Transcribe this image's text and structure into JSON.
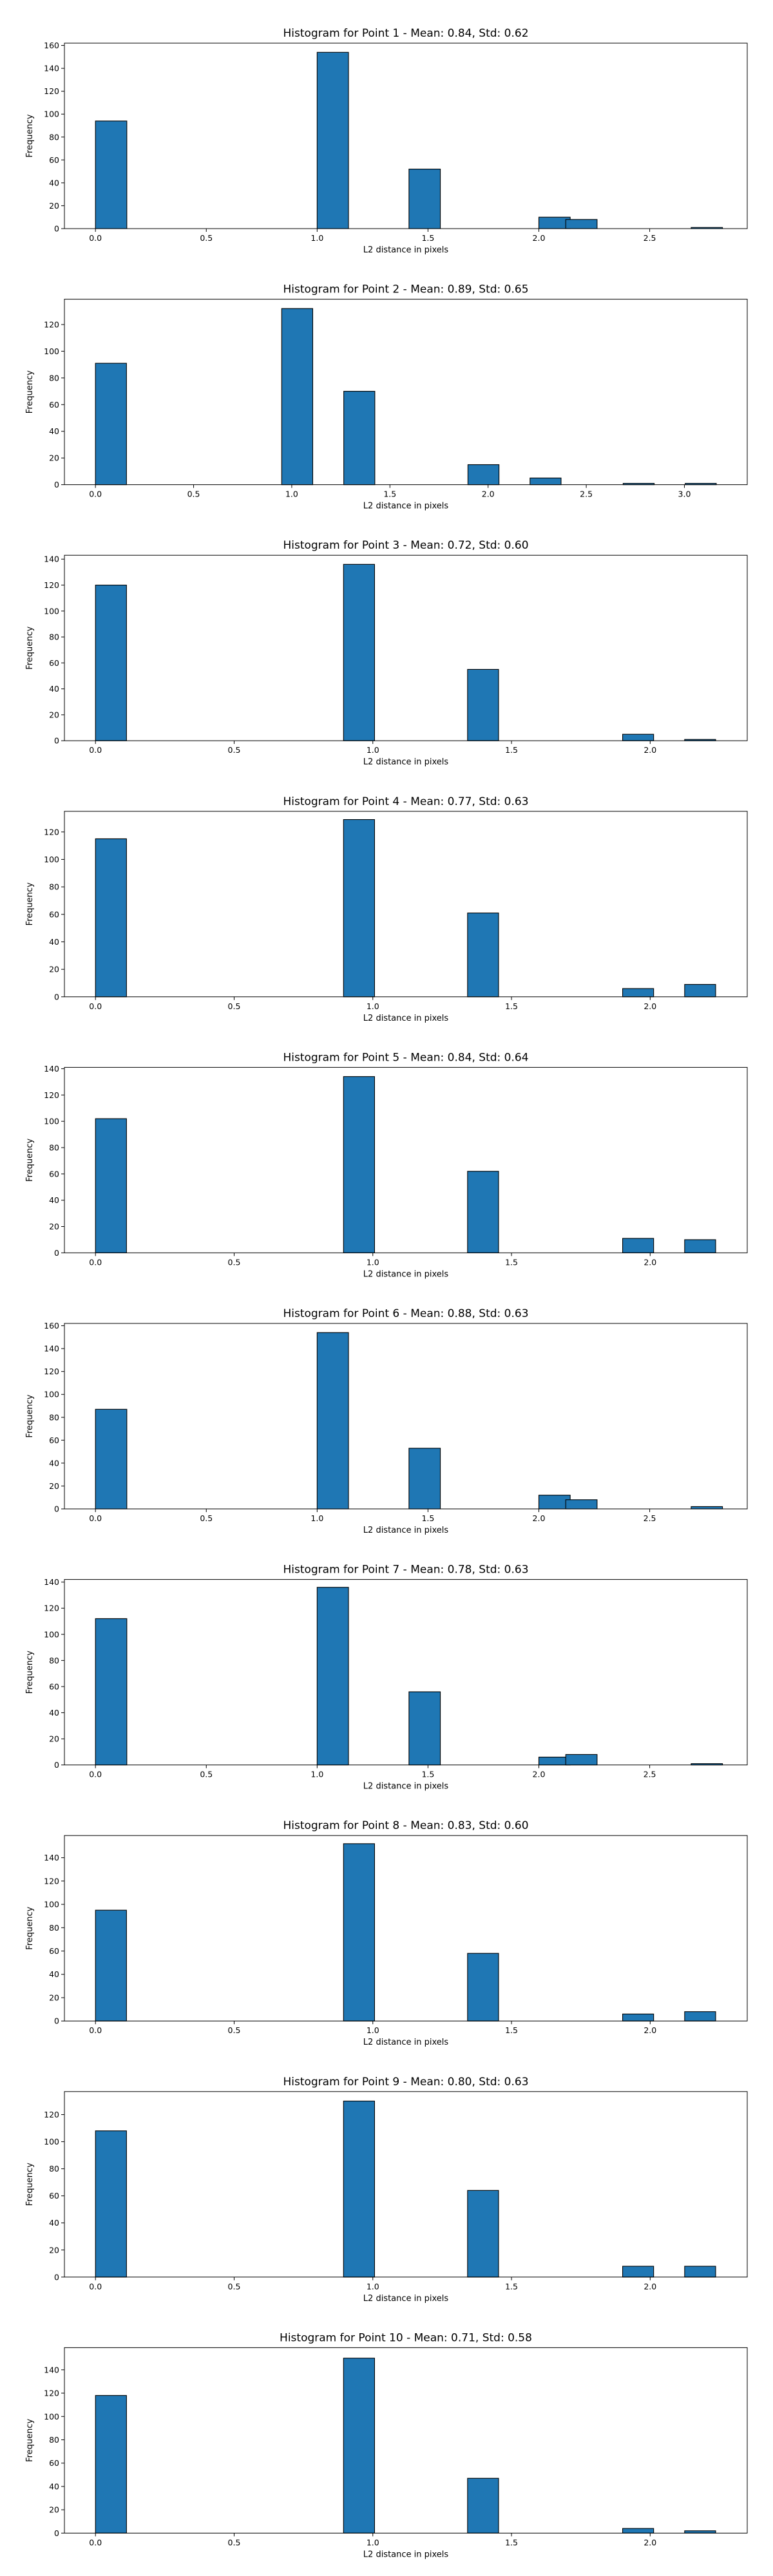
{
  "chart_data": [
    {
      "type": "bar",
      "title": "Histogram for Point 1 - Mean: 0.84, Std: 0.62",
      "xlabel": "L2 distance in pixels",
      "ylabel": "Frequency",
      "xlim": [
        -0.14,
        2.94
      ],
      "ylim": [
        0,
        162
      ],
      "xticks": [
        "0.0",
        "0.5",
        "1.0",
        "1.5",
        "2.0",
        "2.5"
      ],
      "xtick_values": [
        0,
        0.5,
        1.0,
        1.5,
        2.0,
        2.5
      ],
      "yticks": [
        "0",
        "20",
        "40",
        "60",
        "80",
        "100",
        "120",
        "140",
        "160"
      ],
      "ytick_values": [
        0,
        20,
        40,
        60,
        80,
        100,
        120,
        140,
        160
      ],
      "bin_width": 0.1414,
      "bars": [
        {
          "x": 0.0,
          "value": 94
        },
        {
          "x": 1.0,
          "value": 154
        },
        {
          "x": 1.4142,
          "value": 52
        },
        {
          "x": 2.0,
          "value": 10
        },
        {
          "x": 2.1213,
          "value": 8
        },
        {
          "x": 2.687,
          "value": 1
        }
      ]
    },
    {
      "type": "bar",
      "title": "Histogram for Point 2 - Mean: 0.89, Std: 0.65",
      "xlabel": "L2 distance in pixels",
      "ylabel": "Frequency",
      "xlim": [
        -0.158,
        3.32
      ],
      "ylim": [
        0,
        139
      ],
      "xticks": [
        "0.0",
        "0.5",
        "1.0",
        "1.5",
        "2.0",
        "2.5",
        "3.0"
      ],
      "xtick_values": [
        0,
        0.5,
        1.0,
        1.5,
        2.0,
        2.5,
        3.0
      ],
      "yticks": [
        "0",
        "20",
        "40",
        "60",
        "80",
        "100",
        "120"
      ],
      "ytick_values": [
        0,
        20,
        40,
        60,
        80,
        100,
        120
      ],
      "bin_width": 0.1581,
      "bars": [
        {
          "x": 0.0,
          "value": 91
        },
        {
          "x": 0.9487,
          "value": 132
        },
        {
          "x": 1.2649,
          "value": 70
        },
        {
          "x": 1.8974,
          "value": 15
        },
        {
          "x": 2.2136,
          "value": 5
        },
        {
          "x": 2.688,
          "value": 1
        },
        {
          "x": 3.0042,
          "value": 1
        }
      ]
    },
    {
      "type": "bar",
      "title": "Histogram for Point 3 - Mean: 0.72, Std: 0.60",
      "xlabel": "L2 distance in pixels",
      "ylabel": "Frequency",
      "xlim": [
        -0.112,
        2.35
      ],
      "ylim": [
        0,
        143
      ],
      "xticks": [
        "0.0",
        "0.5",
        "1.0",
        "1.5",
        "2.0"
      ],
      "xtick_values": [
        0,
        0.5,
        1.0,
        1.5,
        2.0
      ],
      "yticks": [
        "0",
        "20",
        "40",
        "60",
        "80",
        "100",
        "120",
        "140"
      ],
      "ytick_values": [
        0,
        20,
        40,
        60,
        80,
        100,
        120,
        140
      ],
      "bin_width": 0.1118,
      "bars": [
        {
          "x": 0.0,
          "value": 120
        },
        {
          "x": 0.8944,
          "value": 136
        },
        {
          "x": 1.3416,
          "value": 55
        },
        {
          "x": 1.9007,
          "value": 5
        },
        {
          "x": 2.1243,
          "value": 1
        }
      ]
    },
    {
      "type": "bar",
      "title": "Histogram for Point 4 - Mean: 0.77, Std: 0.63",
      "xlabel": "L2 distance in pixels",
      "ylabel": "Frequency",
      "xlim": [
        -0.112,
        2.35
      ],
      "ylim": [
        0,
        135
      ],
      "xticks": [
        "0.0",
        "0.5",
        "1.0",
        "1.5",
        "2.0"
      ],
      "xtick_values": [
        0,
        0.5,
        1.0,
        1.5,
        2.0
      ],
      "yticks": [
        "0",
        "20",
        "40",
        "60",
        "80",
        "100",
        "120"
      ],
      "ytick_values": [
        0,
        20,
        40,
        60,
        80,
        100,
        120
      ],
      "bin_width": 0.1118,
      "bars": [
        {
          "x": 0.0,
          "value": 115
        },
        {
          "x": 0.8944,
          "value": 129
        },
        {
          "x": 1.3416,
          "value": 61
        },
        {
          "x": 1.9007,
          "value": 6
        },
        {
          "x": 2.1243,
          "value": 9
        }
      ]
    },
    {
      "type": "bar",
      "title": "Histogram for Point 5 - Mean: 0.84, Std: 0.64",
      "xlabel": "L2 distance in pixels",
      "ylabel": "Frequency",
      "xlim": [
        -0.112,
        2.35
      ],
      "ylim": [
        0,
        141
      ],
      "xticks": [
        "0.0",
        "0.5",
        "1.0",
        "1.5",
        "2.0"
      ],
      "xtick_values": [
        0,
        0.5,
        1.0,
        1.5,
        2.0
      ],
      "yticks": [
        "0",
        "20",
        "40",
        "60",
        "80",
        "100",
        "120",
        "140"
      ],
      "ytick_values": [
        0,
        20,
        40,
        60,
        80,
        100,
        120,
        140
      ],
      "bin_width": 0.1118,
      "bars": [
        {
          "x": 0.0,
          "value": 102
        },
        {
          "x": 0.8944,
          "value": 134
        },
        {
          "x": 1.3416,
          "value": 62
        },
        {
          "x": 1.9007,
          "value": 11
        },
        {
          "x": 2.1243,
          "value": 10
        }
      ]
    },
    {
      "type": "bar",
      "title": "Histogram for Point 6 - Mean: 0.88, Std: 0.63",
      "xlabel": "L2 distance in pixels",
      "ylabel": "Frequency",
      "xlim": [
        -0.14,
        2.94
      ],
      "ylim": [
        0,
        162
      ],
      "xticks": [
        "0.0",
        "0.5",
        "1.0",
        "1.5",
        "2.0",
        "2.5"
      ],
      "xtick_values": [
        0,
        0.5,
        1.0,
        1.5,
        2.0,
        2.5
      ],
      "yticks": [
        "0",
        "20",
        "40",
        "60",
        "80",
        "100",
        "120",
        "140",
        "160"
      ],
      "ytick_values": [
        0,
        20,
        40,
        60,
        80,
        100,
        120,
        140,
        160
      ],
      "bin_width": 0.1414,
      "bars": [
        {
          "x": 0.0,
          "value": 87
        },
        {
          "x": 1.0,
          "value": 154
        },
        {
          "x": 1.4142,
          "value": 53
        },
        {
          "x": 2.0,
          "value": 12
        },
        {
          "x": 2.1213,
          "value": 8
        },
        {
          "x": 2.687,
          "value": 2
        }
      ]
    },
    {
      "type": "bar",
      "title": "Histogram for Point 7 - Mean: 0.78, Std: 0.63",
      "xlabel": "L2 distance in pixels",
      "ylabel": "Frequency",
      "xlim": [
        -0.14,
        2.94
      ],
      "ylim": [
        0,
        142
      ],
      "xticks": [
        "0.0",
        "0.5",
        "1.0",
        "1.5",
        "2.0",
        "2.5"
      ],
      "xtick_values": [
        0,
        0.5,
        1.0,
        1.5,
        2.0,
        2.5
      ],
      "yticks": [
        "0",
        "20",
        "40",
        "60",
        "80",
        "100",
        "120",
        "140"
      ],
      "ytick_values": [
        0,
        20,
        40,
        60,
        80,
        100,
        120,
        140
      ],
      "bin_width": 0.1414,
      "bars": [
        {
          "x": 0.0,
          "value": 112
        },
        {
          "x": 1.0,
          "value": 136
        },
        {
          "x": 1.4142,
          "value": 56
        },
        {
          "x": 2.0,
          "value": 6
        },
        {
          "x": 2.1213,
          "value": 8
        },
        {
          "x": 2.687,
          "value": 1
        }
      ]
    },
    {
      "type": "bar",
      "title": "Histogram for Point 8 - Mean: 0.83, Std: 0.60",
      "xlabel": "L2 distance in pixels",
      "ylabel": "Frequency",
      "xlim": [
        -0.112,
        2.35
      ],
      "ylim": [
        0,
        159
      ],
      "xticks": [
        "0.0",
        "0.5",
        "1.0",
        "1.5",
        "2.0"
      ],
      "xtick_values": [
        0,
        0.5,
        1.0,
        1.5,
        2.0
      ],
      "yticks": [
        "0",
        "20",
        "40",
        "60",
        "80",
        "100",
        "120",
        "140"
      ],
      "ytick_values": [
        0,
        20,
        40,
        60,
        80,
        100,
        120,
        140
      ],
      "bin_width": 0.1118,
      "bars": [
        {
          "x": 0.0,
          "value": 95
        },
        {
          "x": 0.8944,
          "value": 152
        },
        {
          "x": 1.3416,
          "value": 58
        },
        {
          "x": 1.9007,
          "value": 6
        },
        {
          "x": 2.1243,
          "value": 8
        }
      ]
    },
    {
      "type": "bar",
      "title": "Histogram for Point 9 - Mean: 0.80, Std: 0.63",
      "xlabel": "L2 distance in pixels",
      "ylabel": "Frequency",
      "xlim": [
        -0.112,
        2.35
      ],
      "ylim": [
        0,
        137
      ],
      "xticks": [
        "0.0",
        "0.5",
        "1.0",
        "1.5",
        "2.0"
      ],
      "xtick_values": [
        0,
        0.5,
        1.0,
        1.5,
        2.0
      ],
      "yticks": [
        "0",
        "20",
        "40",
        "60",
        "80",
        "100",
        "120"
      ],
      "ytick_values": [
        0,
        20,
        40,
        60,
        80,
        100,
        120
      ],
      "bin_width": 0.1118,
      "bars": [
        {
          "x": 0.0,
          "value": 108
        },
        {
          "x": 0.8944,
          "value": 130
        },
        {
          "x": 1.3416,
          "value": 64
        },
        {
          "x": 1.9007,
          "value": 8
        },
        {
          "x": 2.1243,
          "value": 8
        }
      ]
    },
    {
      "type": "bar",
      "title": "Histogram for Point 10 - Mean: 0.71, Std: 0.58",
      "xlabel": "L2 distance in pixels",
      "ylabel": "Frequency",
      "xlim": [
        -0.112,
        2.35
      ],
      "ylim": [
        0,
        159
      ],
      "xticks": [
        "0.0",
        "0.5",
        "1.0",
        "1.5",
        "2.0"
      ],
      "xtick_values": [
        0,
        0.5,
        1.0,
        1.5,
        2.0
      ],
      "yticks": [
        "0",
        "20",
        "40",
        "60",
        "80",
        "100",
        "120",
        "140"
      ],
      "ytick_values": [
        0,
        20,
        40,
        60,
        80,
        100,
        120,
        140
      ],
      "bin_width": 0.1118,
      "bars": [
        {
          "x": 0.0,
          "value": 118
        },
        {
          "x": 0.8944,
          "value": 150
        },
        {
          "x": 1.3416,
          "value": 47
        },
        {
          "x": 1.9007,
          "value": 4
        },
        {
          "x": 2.1243,
          "value": 2
        }
      ]
    }
  ]
}
